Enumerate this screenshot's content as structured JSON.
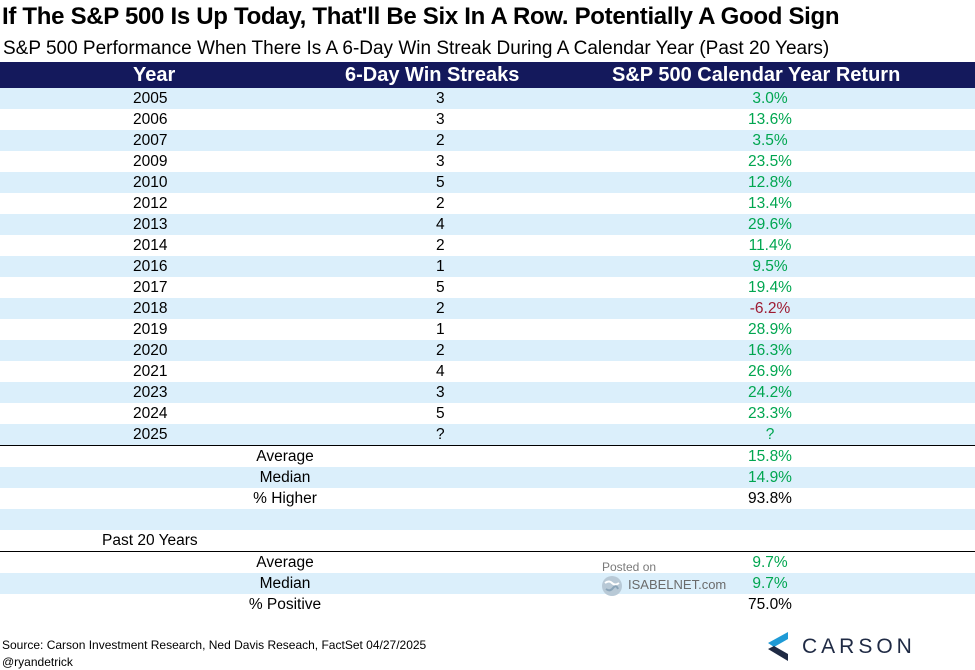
{
  "title": "If The S&P 500 Is Up Today, That'll Be Six In A Row. Potentially A Good Sign",
  "subtitle": "S&P 500 Performance When There Is A 6-Day Win Streak During A Calendar Year (Past 20 Years)",
  "columns": {
    "year": "Year",
    "streaks": "6-Day Win Streaks",
    "return": "S&P 500 Calendar Year Return"
  },
  "rows": [
    {
      "year": "2005",
      "streaks": "3",
      "return": "3.0%"
    },
    {
      "year": "2006",
      "streaks": "3",
      "return": "13.6%"
    },
    {
      "year": "2007",
      "streaks": "2",
      "return": "3.5%"
    },
    {
      "year": "2009",
      "streaks": "3",
      "return": "23.5%"
    },
    {
      "year": "2010",
      "streaks": "5",
      "return": "12.8%"
    },
    {
      "year": "2012",
      "streaks": "2",
      "return": "13.4%"
    },
    {
      "year": "2013",
      "streaks": "4",
      "return": "29.6%"
    },
    {
      "year": "2014",
      "streaks": "2",
      "return": "11.4%"
    },
    {
      "year": "2016",
      "streaks": "1",
      "return": "9.5%"
    },
    {
      "year": "2017",
      "streaks": "5",
      "return": "19.4%"
    },
    {
      "year": "2018",
      "streaks": "2",
      "return": "-6.2%"
    },
    {
      "year": "2019",
      "streaks": "1",
      "return": "28.9%"
    },
    {
      "year": "2020",
      "streaks": "2",
      "return": "16.3%"
    },
    {
      "year": "2021",
      "streaks": "4",
      "return": "26.9%"
    },
    {
      "year": "2023",
      "streaks": "3",
      "return": "24.2%"
    },
    {
      "year": "2024",
      "streaks": "5",
      "return": "23.3%"
    },
    {
      "year": "2025",
      "streaks": "?",
      "return": "?"
    }
  ],
  "summary": {
    "average_label": "Average",
    "average_value": "15.8%",
    "median_label": "Median",
    "median_value": "14.9%",
    "higher_label": "% Higher",
    "higher_value": "93.8%"
  },
  "past20": {
    "title": "Past 20 Years",
    "average_label": "Average",
    "average_value": "9.7%",
    "median_label": "Median",
    "median_value": "9.7%",
    "positive_label": "% Positive",
    "positive_value": "75.0%"
  },
  "watermark": {
    "posted_on": "Posted on",
    "site": "ISABELNET.com"
  },
  "source": "Source: Carson Investment Research, Ned Davis Reseach, FactSet 04/27/2025",
  "handle": "@ryandetrick",
  "brand": "CARSON",
  "colors": {
    "header_bg": "#14195c",
    "alt_row": "#dbeffb",
    "positive": "#00a650",
    "negative": "#9e1b32",
    "brand_blue": "#1e9ad6"
  }
}
